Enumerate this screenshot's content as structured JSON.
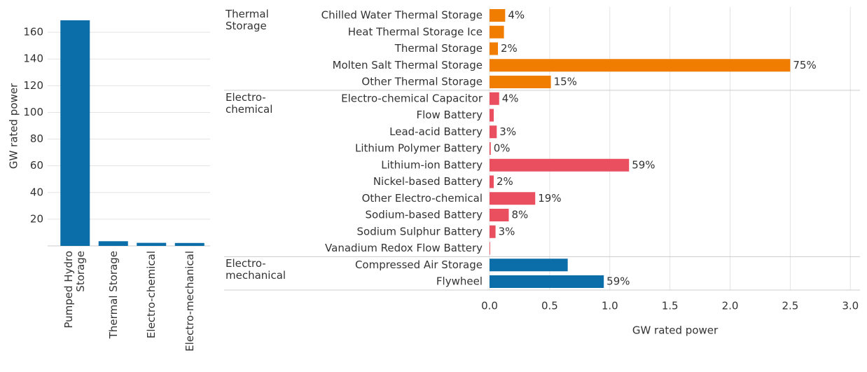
{
  "chart_data": [
    {
      "type": "bar",
      "y_label": "GW rated power",
      "categories": [
        "Pumped Hydro Storage",
        "Thermal Storage",
        "Electro-chemical",
        "Electro-mechanical"
      ],
      "values": [
        169,
        3.5,
        2.3,
        2.2
      ],
      "color": "#0b6ea8",
      "ylim": [
        0,
        180
      ],
      "yticks": [
        20,
        40,
        60,
        80,
        100,
        120,
        140,
        160
      ],
      "grid": true
    },
    {
      "type": "grouped_hbar",
      "x_label": "GW rated power",
      "groups": [
        {
          "name": "Thermal Storage",
          "color": "#f07c00",
          "categories": [
            "Chilled Water Thermal Storage",
            "Heat Thermal Storage Ice",
            "Thermal Storage",
            "Molten Salt Thermal Storage",
            "Other Thermal Storage"
          ],
          "values": [
            0.13,
            0.12,
            0.07,
            2.5,
            0.51
          ],
          "value_labels": [
            "4%",
            null,
            "2%",
            "75%",
            "15%"
          ]
        },
        {
          "name": "Electro-chemical",
          "color": "#e94f5f",
          "categories": [
            "Electro-chemical Capacitor",
            "Flow Battery",
            "Lead-acid Battery",
            "Lithium Polymer Battery",
            "Lithium-ion Battery",
            "Nickel-based Battery",
            "Other Electro-chemical",
            "Sodium-based Battery",
            "Sodium Sulphur Battery",
            "Vanadium Redox Flow Battery"
          ],
          "values": [
            0.08,
            0.035,
            0.06,
            0.01,
            1.16,
            0.035,
            0.38,
            0.16,
            0.05,
            0.005
          ],
          "value_labels": [
            "4%",
            null,
            "3%",
            "0%",
            "59%",
            "2%",
            "19%",
            "8%",
            "3%",
            null
          ]
        },
        {
          "name": "Electro-mechanical",
          "color": "#0b6ea8",
          "categories": [
            "Compressed Air Storage",
            "Flywheel"
          ],
          "values": [
            0.65,
            0.95
          ],
          "value_labels": [
            null,
            "59%"
          ]
        }
      ],
      "xlim": [
        0,
        3.08
      ],
      "xticks": [
        {
          "value": 0,
          "label": "0.0"
        },
        0.5,
        {
          "value": 1,
          "label": "1.0"
        },
        1.5,
        {
          "value": 2,
          "label": "2.0"
        },
        2.5,
        {
          "value": 3,
          "label": "3.0"
        }
      ],
      "grid": true
    }
  ]
}
